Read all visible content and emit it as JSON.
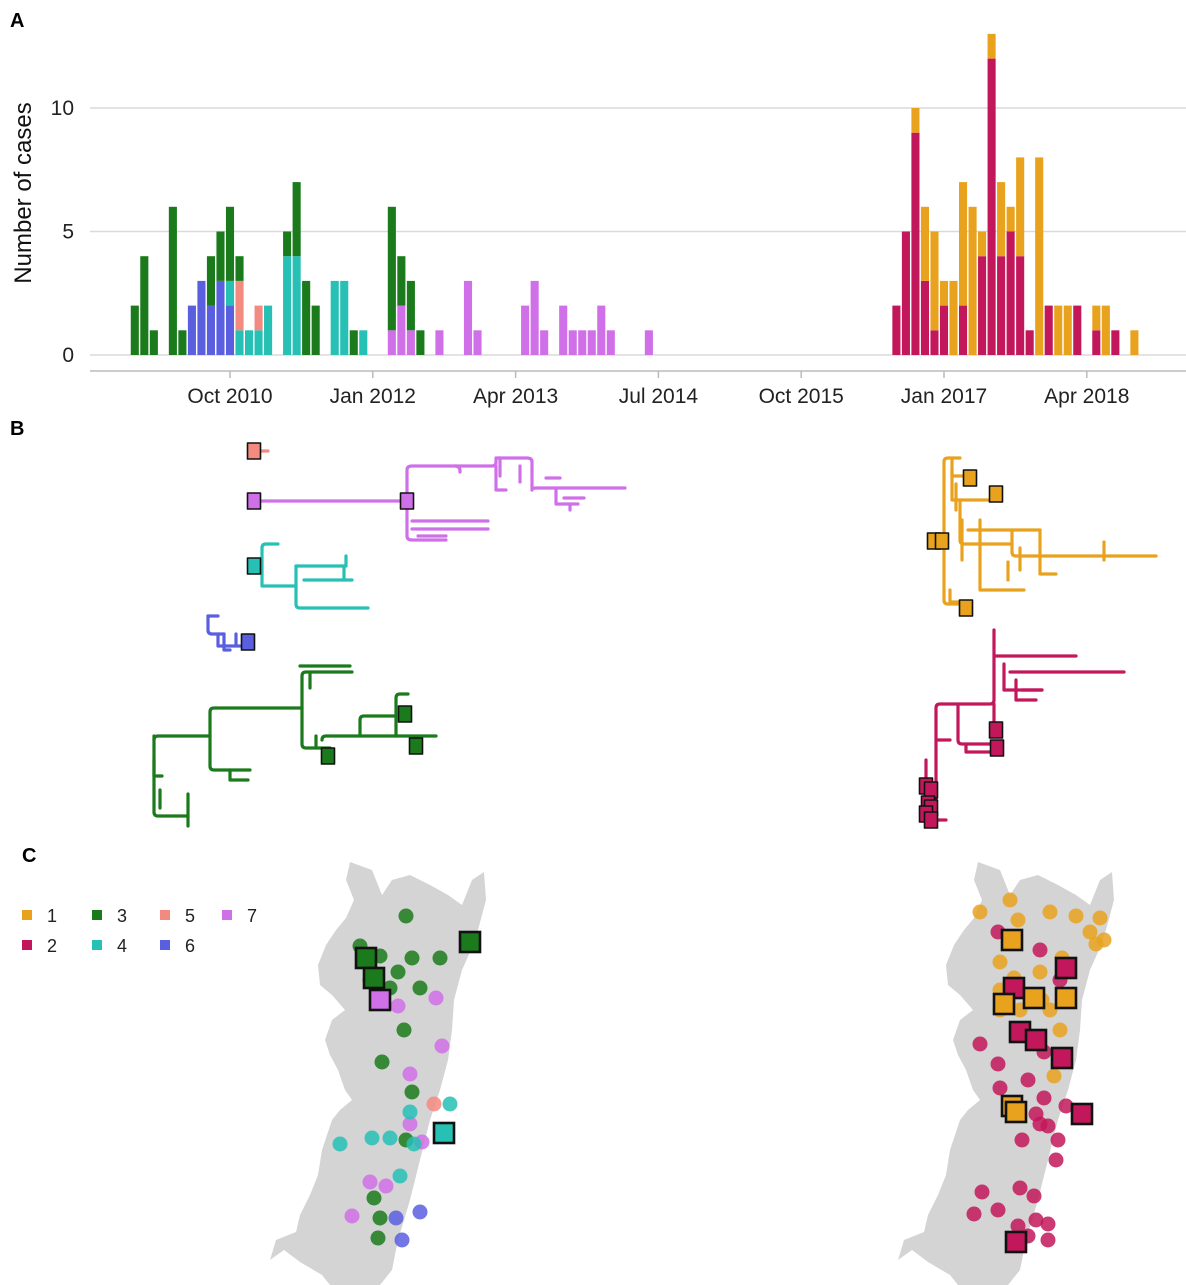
{
  "panels": {
    "a": "A",
    "b": "B",
    "c": "C"
  },
  "colors": {
    "1": "#E8A21E",
    "2": "#C2185B",
    "3": "#1B7A1B",
    "4": "#26C0B5",
    "5": "#F38A80",
    "6": "#5A5FE0",
    "7": "#D070E8",
    "grid": "#DADADA",
    "map": "#D4D4D4",
    "axis": "#BBBBBB"
  },
  "chart_data": [
    {
      "type": "bar",
      "stacked": true,
      "ylabel": "Number of cases",
      "xlabel": "",
      "ylim": [
        0,
        13
      ],
      "yticks": [
        0,
        5,
        10
      ],
      "grid": true,
      "xticks": [
        "Oct 2010",
        "Jan 2012",
        "Apr 2013",
        "Jul 2014",
        "Oct 2015",
        "Jan 2017",
        "Apr 2018"
      ],
      "xtick_months": [
        "2010-10",
        "2012-01",
        "2013-04",
        "2014-07",
        "2015-10",
        "2017-01",
        "2018-04"
      ],
      "bar_width_months": 0.85,
      "bars": [
        {
          "month": "2009-12",
          "counts": {
            "3": 2
          }
        },
        {
          "month": "2010-01",
          "counts": {
            "3": 4
          }
        },
        {
          "month": "2010-02",
          "counts": {
            "3": 1
          }
        },
        {
          "month": "2010-04",
          "counts": {
            "3": 6
          }
        },
        {
          "month": "2010-05",
          "counts": {
            "3": 1
          }
        },
        {
          "month": "2010-06",
          "counts": {
            "6": 2
          }
        },
        {
          "month": "2010-07",
          "counts": {
            "6": 3
          }
        },
        {
          "month": "2010-08",
          "counts": {
            "6": 2,
            "3": 2
          }
        },
        {
          "month": "2010-09",
          "counts": {
            "6": 3,
            "3": 2
          }
        },
        {
          "month": "2010-10",
          "counts": {
            "6": 2,
            "4": 1,
            "3": 3
          }
        },
        {
          "month": "2010-11",
          "counts": {
            "5": 2,
            "4": 1,
            "3": 1
          }
        },
        {
          "month": "2010-12",
          "counts": {
            "4": 1
          }
        },
        {
          "month": "2011-01",
          "counts": {
            "5": 1,
            "4": 1
          }
        },
        {
          "month": "2011-02",
          "counts": {
            "4": 2
          }
        },
        {
          "month": "2011-04",
          "counts": {
            "4": 4,
            "3": 1
          }
        },
        {
          "month": "2011-05",
          "counts": {
            "4": 4,
            "3": 3
          }
        },
        {
          "month": "2011-06",
          "counts": {
            "3": 3
          }
        },
        {
          "month": "2011-07",
          "counts": {
            "3": 2
          }
        },
        {
          "month": "2011-09",
          "counts": {
            "4": 3
          }
        },
        {
          "month": "2011-10",
          "counts": {
            "4": 3
          }
        },
        {
          "month": "2011-11",
          "counts": {
            "3": 1
          }
        },
        {
          "month": "2011-12",
          "counts": {
            "4": 1
          }
        },
        {
          "month": "2012-03",
          "counts": {
            "7": 1,
            "3": 5
          }
        },
        {
          "month": "2012-04",
          "counts": {
            "7": 2,
            "3": 2
          }
        },
        {
          "month": "2012-05",
          "counts": {
            "7": 1,
            "3": 2
          }
        },
        {
          "month": "2012-06",
          "counts": {
            "3": 1
          }
        },
        {
          "month": "2012-08",
          "counts": {
            "7": 1
          }
        },
        {
          "month": "2012-11",
          "counts": {
            "7": 3
          }
        },
        {
          "month": "2012-12",
          "counts": {
            "7": 1
          }
        },
        {
          "month": "2013-05",
          "counts": {
            "7": 2
          }
        },
        {
          "month": "2013-06",
          "counts": {
            "7": 3
          }
        },
        {
          "month": "2013-07",
          "counts": {
            "7": 1
          }
        },
        {
          "month": "2013-09",
          "counts": {
            "7": 2
          }
        },
        {
          "month": "2013-10",
          "counts": {
            "7": 1
          }
        },
        {
          "month": "2013-11",
          "counts": {
            "7": 1
          }
        },
        {
          "month": "2013-12",
          "counts": {
            "7": 1
          }
        },
        {
          "month": "2014-01",
          "counts": {
            "7": 2
          }
        },
        {
          "month": "2014-02",
          "counts": {
            "7": 1
          }
        },
        {
          "month": "2014-06",
          "counts": {
            "7": 1
          }
        },
        {
          "month": "2016-08",
          "counts": {
            "2": 2
          }
        },
        {
          "month": "2016-09",
          "counts": {
            "2": 5
          }
        },
        {
          "month": "2016-10",
          "counts": {
            "2": 9,
            "1": 1
          }
        },
        {
          "month": "2016-11",
          "counts": {
            "2": 3,
            "1": 3
          }
        },
        {
          "month": "2016-12",
          "counts": {
            "2": 1,
            "1": 4
          }
        },
        {
          "month": "2017-01",
          "counts": {
            "2": 2,
            "1": 1
          }
        },
        {
          "month": "2017-02",
          "counts": {
            "1": 3
          }
        },
        {
          "month": "2017-03",
          "counts": {
            "2": 2,
            "1": 5
          }
        },
        {
          "month": "2017-04",
          "counts": {
            "1": 6
          }
        },
        {
          "month": "2017-05",
          "counts": {
            "2": 4,
            "1": 1
          }
        },
        {
          "month": "2017-06",
          "counts": {
            "2": 12,
            "1": 1
          }
        },
        {
          "month": "2017-07",
          "counts": {
            "2": 4,
            "1": 3
          }
        },
        {
          "month": "2017-08",
          "counts": {
            "2": 5,
            "1": 1
          }
        },
        {
          "month": "2017-09",
          "counts": {
            "2": 4,
            "1": 4
          }
        },
        {
          "month": "2017-10",
          "counts": {
            "2": 1
          }
        },
        {
          "month": "2017-11",
          "counts": {
            "1": 8
          }
        },
        {
          "month": "2017-12",
          "counts": {
            "2": 2
          }
        },
        {
          "month": "2018-01",
          "counts": {
            "1": 2
          }
        },
        {
          "month": "2018-02",
          "counts": {
            "1": 2
          }
        },
        {
          "month": "2018-03",
          "counts": {
            "2": 2
          }
        },
        {
          "month": "2018-05",
          "counts": {
            "2": 1,
            "1": 1
          }
        },
        {
          "month": "2018-06",
          "counts": {
            "1": 2
          }
        },
        {
          "month": "2018-07",
          "counts": {
            "2": 1
          }
        },
        {
          "month": "2018-09",
          "counts": {
            "1": 1
          }
        }
      ]
    }
  ],
  "legend": [
    {
      "label": "1",
      "lineage": "1"
    },
    {
      "label": "2",
      "lineage": "2"
    },
    {
      "label": "3",
      "lineage": "3"
    },
    {
      "label": "4",
      "lineage": "4"
    },
    {
      "label": "5",
      "lineage": "5"
    },
    {
      "label": "6",
      "lineage": "6"
    },
    {
      "label": "7",
      "lineage": "7"
    }
  ]
}
